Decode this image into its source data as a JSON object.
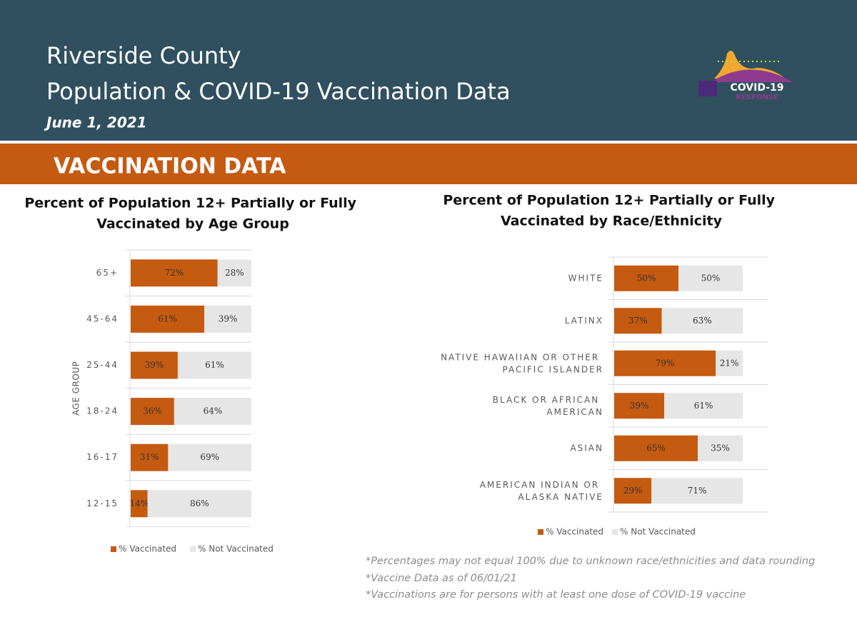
{
  "header": {
    "title": [
      "Riverside County",
      "Population & COVID-19 Vaccination Data"
    ],
    "date": "June 1, 2021",
    "logo": [
      "COVID-19",
      "RESPONSE"
    ]
  },
  "section": "VACCINATION DATA",
  "chart_data": [
    {
      "type": "stacked_bar_h",
      "title": "Percent of Population 12+ Partially or Fully Vaccinated by Age Group",
      "y_label": "AGE GROUP",
      "categories": [
        "65+",
        "45-64",
        "25-44",
        "18-24",
        "16-17",
        "12-15"
      ],
      "xlim": [
        0,
        100
      ],
      "series": [
        {
          "name": "% Vaccinated",
          "color": "#c55a11",
          "values": [
            72,
            61,
            39,
            36,
            31,
            14
          ],
          "value_labels": [
            "72%",
            "61%",
            "39%",
            "36%",
            "31%",
            "14%"
          ]
        },
        {
          "name": "% Not Vaccinated",
          "color": "#e7e6e6",
          "values": [
            28,
            39,
            61,
            64,
            69,
            86
          ],
          "value_labels": [
            "28%",
            "39%",
            "61%",
            "64%",
            "69%",
            "86%"
          ]
        }
      ]
    },
    {
      "type": "stacked_bar_h",
      "title": "Percent of Population 12+ Partially or Fully Vaccinated by Race/Ethnicity",
      "categories": [
        "WHITE",
        "LATINX",
        "NATIVE HAWAIIAN OR OTHER PACIFIC ISLANDER",
        "BLACK OR AFRICAN AMERICAN",
        "ASIAN",
        "AMERICAN INDIAN OR ALASKA NATIVE"
      ],
      "xlim": [
        0,
        100
      ],
      "series": [
        {
          "name": "% Vaccinated",
          "color": "#c55a11",
          "values": [
            50,
            37,
            79,
            39,
            65,
            29
          ],
          "value_labels": [
            "50%",
            "37%",
            "79%",
            "39%",
            "65%",
            "29%"
          ]
        },
        {
          "name": "% Not Vaccinated",
          "color": "#e7e6e6",
          "values": [
            50,
            63,
            21,
            61,
            35,
            71
          ],
          "value_labels": [
            "50%",
            "63%",
            "21%",
            "61%",
            "35%",
            "71%"
          ]
        }
      ]
    }
  ],
  "footnotes": [
    "*Percentages may not equal 100% due to unknown race/ethnicities and data rounding",
    "*Vaccine Data as of 06/01/21",
    "*Vaccinations are for persons with at least one dose of COVID-19 vaccine"
  ]
}
